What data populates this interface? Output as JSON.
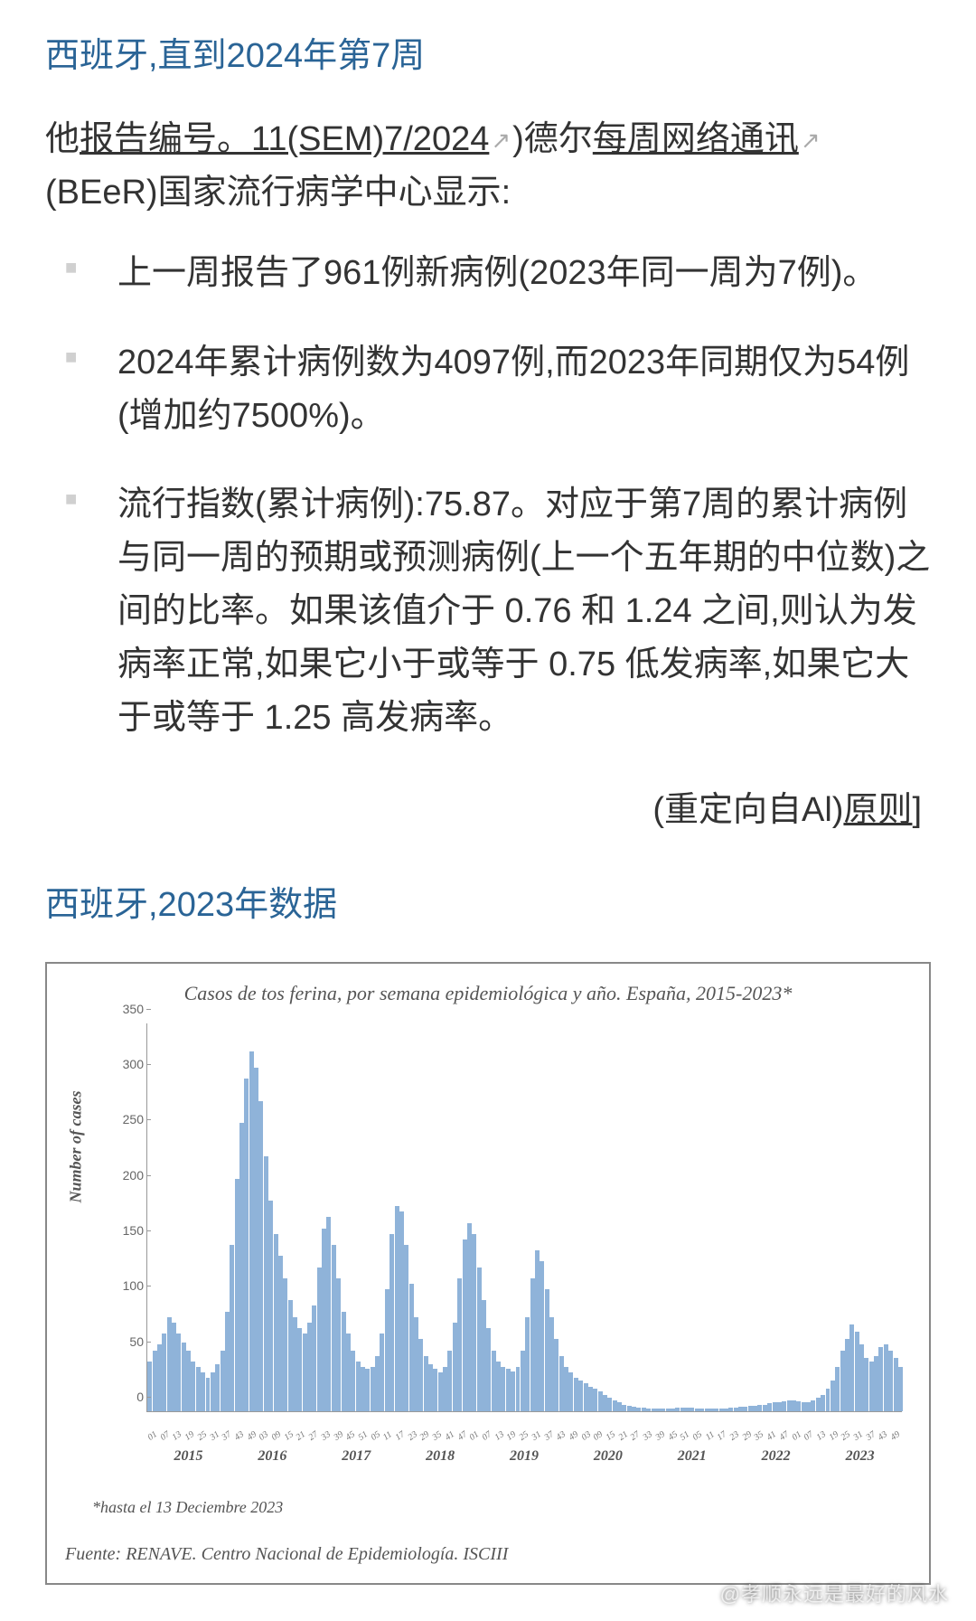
{
  "section1": {
    "heading": "西班牙,直到2024年第7周",
    "para_prefix": "他",
    "link1": "报告编号。11(SEM)7/2024",
    "para_mid1": ")德尔",
    "link2": "每周网络通讯",
    "para_suffix": "(BEeR)国家流行病学中心显示:",
    "bullets": [
      "上一周报告了961例新病例(2023年同一周为7例)。",
      "2024年累计病例数为4097例,而2023年同期仅为54例(增加约7500%)。",
      "流行指数(累计病例):75.87。对应于第7周的累计病例与同一周的预期或预测病例(上一个五年期的中位数)之间的比率。如果该值介于 0.76 和 1.24 之间,则认为发病率正常,如果它小于或等于 0.75 低发病率,如果它大于或等于 1.25 高发病率。"
    ],
    "redirect_prefix": "(重定向自Al)",
    "redirect_link": "原则",
    "redirect_suffix": "]"
  },
  "section2": {
    "heading": "西班牙,2023年数据"
  },
  "chart": {
    "title": "Casos de tos ferina, por semana epidemiológica y año. España, 2015-2023*",
    "note": "*hasta el 13 Deciembre  2023",
    "source": "Fuente: RENAVE. Centro Nacional de Epidemiología. ISCIII",
    "y_label": "Number of cases",
    "type": "bar",
    "bar_color": "#8fb3d9",
    "border_color": "#888888",
    "axis_color": "#999999",
    "background": "#ffffff",
    "ylim": [
      0,
      350
    ],
    "ytick_step": 50,
    "yticks": [
      0,
      50,
      100,
      150,
      200,
      250,
      300,
      350
    ],
    "x_years": [
      "2015",
      "2016",
      "2017",
      "2018",
      "2019",
      "2020",
      "2021",
      "2022",
      "2023"
    ],
    "x_week_labels": [
      "01",
      "07",
      "13",
      "19",
      "25",
      "31",
      "37",
      "43",
      "49",
      "03",
      "09",
      "15",
      "21",
      "27",
      "33",
      "39",
      "45",
      "51",
      "05",
      "11",
      "17",
      "23",
      "29",
      "35",
      "41",
      "47",
      "01",
      "07",
      "13",
      "19",
      "25",
      "31",
      "37",
      "43",
      "49",
      "03",
      "09",
      "15",
      "21",
      "27",
      "33",
      "39",
      "45",
      "51",
      "05",
      "11",
      "17",
      "23",
      "29",
      "35",
      "41",
      "47",
      "01",
      "07",
      "13",
      "19",
      "25",
      "31",
      "37",
      "43",
      "49"
    ],
    "values": [
      45,
      55,
      60,
      70,
      85,
      80,
      70,
      62,
      55,
      45,
      40,
      35,
      30,
      35,
      42,
      55,
      90,
      150,
      210,
      260,
      300,
      325,
      310,
      280,
      230,
      190,
      160,
      140,
      120,
      100,
      85,
      75,
      70,
      80,
      95,
      130,
      165,
      175,
      150,
      120,
      90,
      70,
      55,
      45,
      40,
      38,
      40,
      50,
      70,
      110,
      160,
      185,
      180,
      150,
      115,
      85,
      65,
      50,
      42,
      38,
      35,
      40,
      55,
      80,
      120,
      155,
      170,
      160,
      130,
      100,
      75,
      55,
      45,
      40,
      38,
      36,
      40,
      55,
      85,
      120,
      145,
      135,
      110,
      85,
      65,
      50,
      40,
      35,
      30,
      28,
      25,
      22,
      20,
      18,
      15,
      12,
      10,
      8,
      6,
      5,
      4,
      3,
      3,
      2,
      2,
      2,
      2,
      2,
      2,
      3,
      3,
      3,
      3,
      2,
      2,
      2,
      2,
      2,
      2,
      2,
      3,
      3,
      4,
      4,
      5,
      5,
      6,
      6,
      7,
      8,
      8,
      9,
      10,
      10,
      9,
      8,
      8,
      10,
      12,
      15,
      20,
      28,
      40,
      55,
      65,
      78,
      72,
      60,
      48,
      45,
      50,
      58,
      60,
      55,
      48,
      40
    ]
  },
  "watermark": "@孝顺永远是最好的风水"
}
